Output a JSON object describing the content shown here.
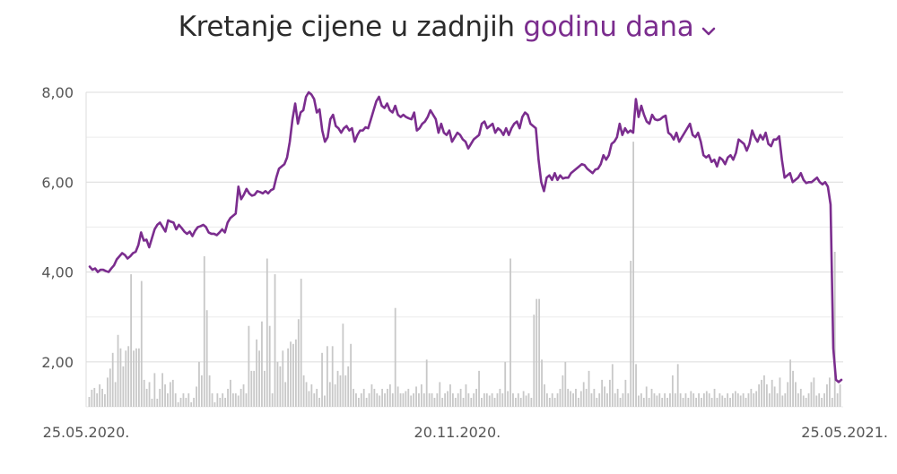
{
  "header": {
    "title_prefix": "Kretanje cijene u zadnjih",
    "range_selected": "godinu dana",
    "chevron_icon": "chevron-down-icon",
    "accent_color": "#7b2d8e"
  },
  "chart_data": {
    "type": "line",
    "title": "Kretanje cijene u zadnjih godinu dana",
    "xlabel": "",
    "ylabel": "",
    "ylim": [
      1,
      8
    ],
    "yticks": [
      "2,00",
      "4,00",
      "6,00",
      "8,00"
    ],
    "ytick_values": [
      2,
      4,
      6,
      8
    ],
    "x_start": "25.05.2020.",
    "x_end": "25.05.2021.",
    "xticks": [
      "25.05.2020.",
      "20.11.2020.",
      "25.05.2021."
    ],
    "xtick_dates": [
      "2020-05-25",
      "2020-11-20",
      "2021-05-25"
    ],
    "grid": true,
    "series": [
      {
        "kind": "line",
        "color": "#7b2d8e",
        "values": [
          4.12,
          4.05,
          4.08,
          4.0,
          4.05,
          4.05,
          4.02,
          4.0,
          4.08,
          4.15,
          4.28,
          4.35,
          4.42,
          4.38,
          4.3,
          4.35,
          4.42,
          4.45,
          4.6,
          4.88,
          4.7,
          4.72,
          4.55,
          4.75,
          4.95,
          5.05,
          5.1,
          5.0,
          4.9,
          5.15,
          5.12,
          5.1,
          4.95,
          5.05,
          4.98,
          4.9,
          4.85,
          4.9,
          4.8,
          4.92,
          5.0,
          5.02,
          5.05,
          5.0,
          4.88,
          4.85,
          4.85,
          4.82,
          4.88,
          4.95,
          4.88,
          5.1,
          5.2,
          5.25,
          5.3,
          5.9,
          5.62,
          5.72,
          5.85,
          5.75,
          5.7,
          5.72,
          5.8,
          5.78,
          5.75,
          5.8,
          5.75,
          5.82,
          5.85,
          6.1,
          6.3,
          6.35,
          6.4,
          6.55,
          6.9,
          7.4,
          7.75,
          7.3,
          7.55,
          7.6,
          7.9,
          8.0,
          7.95,
          7.85,
          7.55,
          7.62,
          7.15,
          6.9,
          7.0,
          7.4,
          7.5,
          7.25,
          7.2,
          7.1,
          7.2,
          7.25,
          7.15,
          7.2,
          6.9,
          7.05,
          7.15,
          7.15,
          7.22,
          7.2,
          7.4,
          7.6,
          7.8,
          7.9,
          7.7,
          7.65,
          7.75,
          7.6,
          7.55,
          7.7,
          7.5,
          7.45,
          7.5,
          7.45,
          7.42,
          7.4,
          7.55,
          7.15,
          7.2,
          7.3,
          7.35,
          7.45,
          7.6,
          7.5,
          7.4,
          7.1,
          7.3,
          7.1,
          7.05,
          7.15,
          6.9,
          7.0,
          7.1,
          7.05,
          6.95,
          6.9,
          6.75,
          6.85,
          6.95,
          7.0,
          7.05,
          7.3,
          7.35,
          7.2,
          7.25,
          7.3,
          7.1,
          7.2,
          7.15,
          7.05,
          7.2,
          7.05,
          7.2,
          7.3,
          7.35,
          7.2,
          7.45,
          7.55,
          7.5,
          7.3,
          7.25,
          7.2,
          6.5,
          6.0,
          5.8,
          6.1,
          6.15,
          6.05,
          6.2,
          6.05,
          6.15,
          6.08,
          6.1,
          6.1,
          6.2,
          6.25,
          6.3,
          6.35,
          6.4,
          6.38,
          6.3,
          6.25,
          6.2,
          6.28,
          6.3,
          6.4,
          6.6,
          6.5,
          6.6,
          6.85,
          6.9,
          7.0,
          7.3,
          7.05,
          7.2,
          7.1,
          7.15,
          7.1,
          7.85,
          7.45,
          7.7,
          7.5,
          7.35,
          7.3,
          7.5,
          7.4,
          7.38,
          7.4,
          7.45,
          7.48,
          7.1,
          7.05,
          6.95,
          7.1,
          6.9,
          7.0,
          7.1,
          7.2,
          7.3,
          7.05,
          7.0,
          7.1,
          6.9,
          6.6,
          6.55,
          6.6,
          6.45,
          6.5,
          6.35,
          6.55,
          6.5,
          6.4,
          6.55,
          6.6,
          6.5,
          6.65,
          6.95,
          6.9,
          6.85,
          6.7,
          6.85,
          7.15,
          7.0,
          6.9,
          7.05,
          6.95,
          7.1,
          6.85,
          6.8,
          6.95,
          6.95,
          7.02,
          6.5,
          6.1,
          6.15,
          6.2,
          6.0,
          6.05,
          6.1,
          6.2,
          6.05,
          5.98,
          6.0,
          6.0,
          6.05,
          6.1,
          6.0,
          5.95,
          6.0,
          5.9,
          5.5,
          2.3,
          1.6,
          1.55,
          1.6
        ]
      },
      {
        "kind": "bar",
        "color": "#c8c8c8",
        "values": [
          0.22,
          0.38,
          0.42,
          0.3,
          0.5,
          0.4,
          0.28,
          0.65,
          0.85,
          1.2,
          0.55,
          1.6,
          1.3,
          0.9,
          1.25,
          1.35,
          2.95,
          1.25,
          1.3,
          1.3,
          2.8,
          0.6,
          0.4,
          0.55,
          0.18,
          0.75,
          0.18,
          0.4,
          0.75,
          0.5,
          0.3,
          0.55,
          0.6,
          0.3,
          0.1,
          0.2,
          0.3,
          0.2,
          0.3,
          0.1,
          0.2,
          0.45,
          1.0,
          0.7,
          3.35,
          2.15,
          0.7,
          0.3,
          0.1,
          0.3,
          0.2,
          0.3,
          0.2,
          0.4,
          0.6,
          0.3,
          0.3,
          0.25,
          0.4,
          0.5,
          0.3,
          1.8,
          0.8,
          0.8,
          1.5,
          1.25,
          1.9,
          0.8,
          3.3,
          1.8,
          0.3,
          2.95,
          1.0,
          0.9,
          1.25,
          0.55,
          1.3,
          1.45,
          1.4,
          1.5,
          1.95,
          2.85,
          0.7,
          0.55,
          0.35,
          0.5,
          0.3,
          0.4,
          0.2,
          1.2,
          0.25,
          1.35,
          0.55,
          1.35,
          0.5,
          0.8,
          0.7,
          1.85,
          0.7,
          0.9,
          1.4,
          0.4,
          0.3,
          0.2,
          0.3,
          0.4,
          0.2,
          0.3,
          0.5,
          0.4,
          0.3,
          0.25,
          0.4,
          0.3,
          0.4,
          0.5,
          0.3,
          2.2,
          0.45,
          0.3,
          0.3,
          0.35,
          0.4,
          0.25,
          0.3,
          0.45,
          0.3,
          0.5,
          0.3,
          1.05,
          0.3,
          0.3,
          0.2,
          0.3,
          0.55,
          0.2,
          0.3,
          0.35,
          0.5,
          0.3,
          0.2,
          0.3,
          0.4,
          0.2,
          0.5,
          0.3,
          0.2,
          0.3,
          0.4,
          0.8,
          0.2,
          0.3,
          0.3,
          0.25,
          0.3,
          0.2,
          0.3,
          0.4,
          0.3,
          1.0,
          0.35,
          3.3,
          0.3,
          0.2,
          0.3,
          0.2,
          0.35,
          0.25,
          0.3,
          0.2,
          2.05,
          2.4,
          2.4,
          1.05,
          0.5,
          0.3,
          0.2,
          0.3,
          0.2,
          0.3,
          0.4,
          0.7,
          1.0,
          0.4,
          0.35,
          0.3,
          0.4,
          0.2,
          0.35,
          0.55,
          0.4,
          0.8,
          0.3,
          0.4,
          0.2,
          0.3,
          0.6,
          0.45,
          0.3,
          0.6,
          0.95,
          0.3,
          0.4,
          0.2,
          0.3,
          0.6,
          0.3,
          3.25,
          5.9,
          0.95,
          0.25,
          0.3,
          0.2,
          0.45,
          0.2,
          0.4,
          0.3,
          0.25,
          0.3,
          0.2,
          0.3,
          0.2,
          0.3,
          0.7,
          0.3,
          0.95,
          0.3,
          0.2,
          0.3,
          0.2,
          0.35,
          0.3,
          0.2,
          0.3,
          0.2,
          0.3,
          0.35,
          0.3,
          0.2,
          0.4,
          0.2,
          0.3,
          0.25,
          0.2,
          0.3,
          0.2,
          0.3,
          0.35,
          0.3,
          0.25,
          0.3,
          0.2,
          0.3,
          0.4,
          0.3,
          0.35,
          0.5,
          0.6,
          0.7,
          0.5,
          0.3,
          0.6,
          0.45,
          0.3,
          0.65,
          0.25,
          0.3,
          0.55,
          1.05,
          0.8,
          0.55,
          0.3,
          0.4,
          0.25,
          0.2,
          0.3,
          0.55,
          0.65,
          0.25,
          0.3,
          0.2,
          0.3,
          0.5,
          0.65,
          0.2,
          3.45,
          0.3,
          0.5
        ]
      }
    ]
  }
}
